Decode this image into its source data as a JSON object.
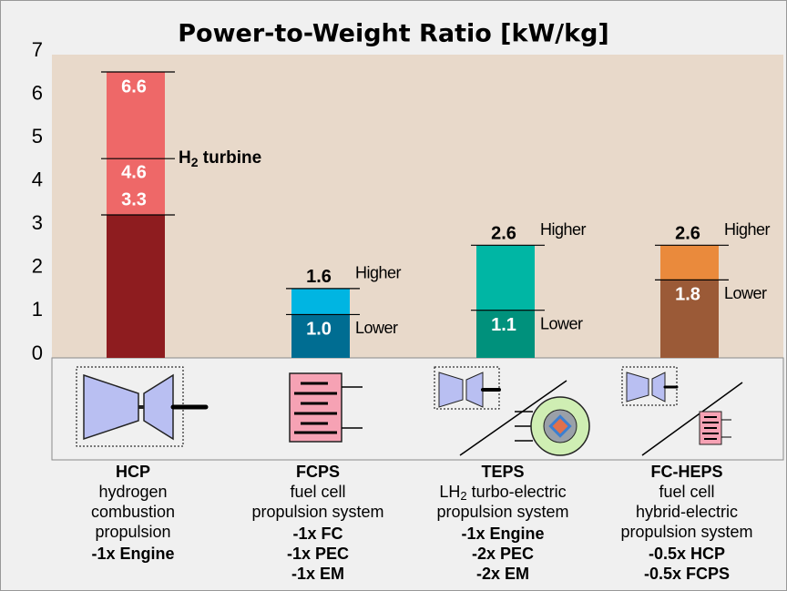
{
  "chart_data": {
    "type": "range_bar",
    "title": "Power-to-Weight Ratio [kW/kg]",
    "categories": [
      "HCP",
      "FCPS",
      "TEPS",
      "FC-HEPS"
    ],
    "series": [
      {
        "name": "Lower",
        "values": [
          3.3,
          1.0,
          1.1,
          1.8
        ],
        "value_labels": [
          "3.3",
          "1.0",
          "1.1",
          "1.8"
        ],
        "colors": [
          "#8e1c1f",
          "#006d92",
          "#00917c",
          "#9b5a37"
        ]
      },
      {
        "name": "Higher",
        "values": [
          6.6,
          1.6,
          2.6,
          2.6
        ],
        "colors": [
          "#ee6868",
          "#00b5e2",
          "#00b6a4",
          "#ea8a3c"
        ]
      }
    ],
    "annotations": [
      {
        "category": 0,
        "value": 4.6,
        "text": "H",
        "sub": "2",
        "rest": " turbine"
      }
    ],
    "ylim": [
      0,
      7
    ],
    "yticks": [
      0,
      1,
      2,
      3,
      4,
      5,
      6,
      7
    ],
    "grid": false,
    "descriptions": [
      [
        [
          "hydrogen"
        ],
        [
          "combustion"
        ],
        [
          "propulsion"
        ]
      ],
      [
        [
          "fuel cell"
        ],
        [
          "propulsion system"
        ]
      ],
      [
        [
          "LH",
          {
            "sub": "2"
          },
          " turbo-electric"
        ],
        [
          "propulsion system"
        ]
      ],
      [
        [
          "fuel cell"
        ],
        [
          "hybrid-electric"
        ],
        [
          "propulsion system"
        ]
      ]
    ],
    "components": [
      [
        "-1x Engine"
      ],
      [
        "-1x FC",
        "-1x PEC",
        "-1x EM"
      ],
      [
        "-1x Engine",
        "-2x PEC",
        "-2x EM"
      ],
      [
        "-0.5x HCP",
        "-0.5x FCPS"
      ]
    ]
  }
}
